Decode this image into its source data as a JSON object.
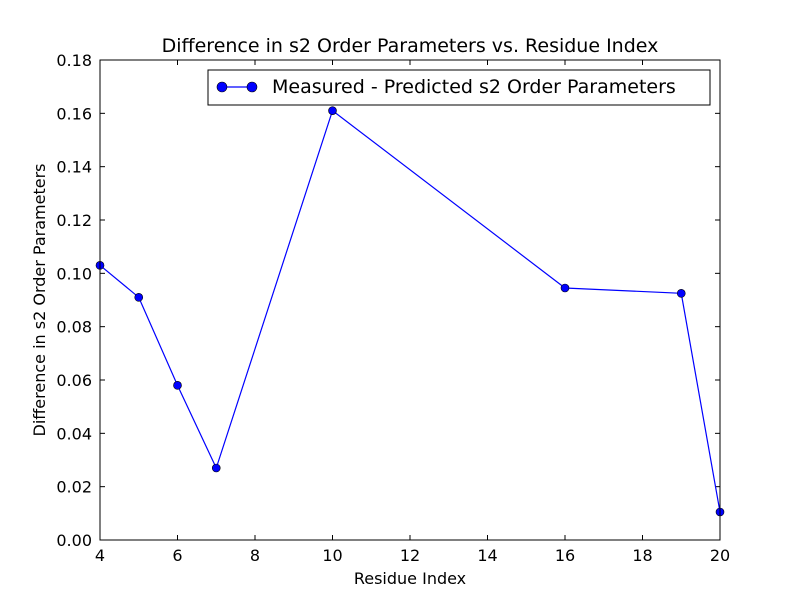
{
  "chart_data": {
    "type": "line",
    "title": "Difference in s2 Order Parameters vs. Residue Index",
    "xlabel": "Residue Index",
    "ylabel": "Difference in s2 Order Parameters",
    "xlim": [
      4,
      20
    ],
    "ylim": [
      0.0,
      0.18
    ],
    "xticks": [
      4,
      6,
      8,
      10,
      12,
      14,
      16,
      18,
      20
    ],
    "xtick_labels": [
      "4",
      "6",
      "8",
      "10",
      "12",
      "14",
      "16",
      "18",
      "20"
    ],
    "yticks": [
      0.0,
      0.02,
      0.04,
      0.06,
      0.08,
      0.1,
      0.12,
      0.14,
      0.16,
      0.18
    ],
    "ytick_labels": [
      "0.00",
      "0.02",
      "0.04",
      "0.06",
      "0.08",
      "0.10",
      "0.12",
      "0.14",
      "0.16",
      "0.18"
    ],
    "grid": false,
    "legend_position": "top-right",
    "series": [
      {
        "name": "Measured - Predicted s2 Order Parameters",
        "color": "#0000ff",
        "marker": "circle",
        "x": [
          4,
          5,
          6,
          7,
          10,
          16,
          19,
          20
        ],
        "y": [
          0.103,
          0.091,
          0.058,
          0.027,
          0.161,
          0.0945,
          0.0925,
          0.0105
        ]
      }
    ]
  }
}
